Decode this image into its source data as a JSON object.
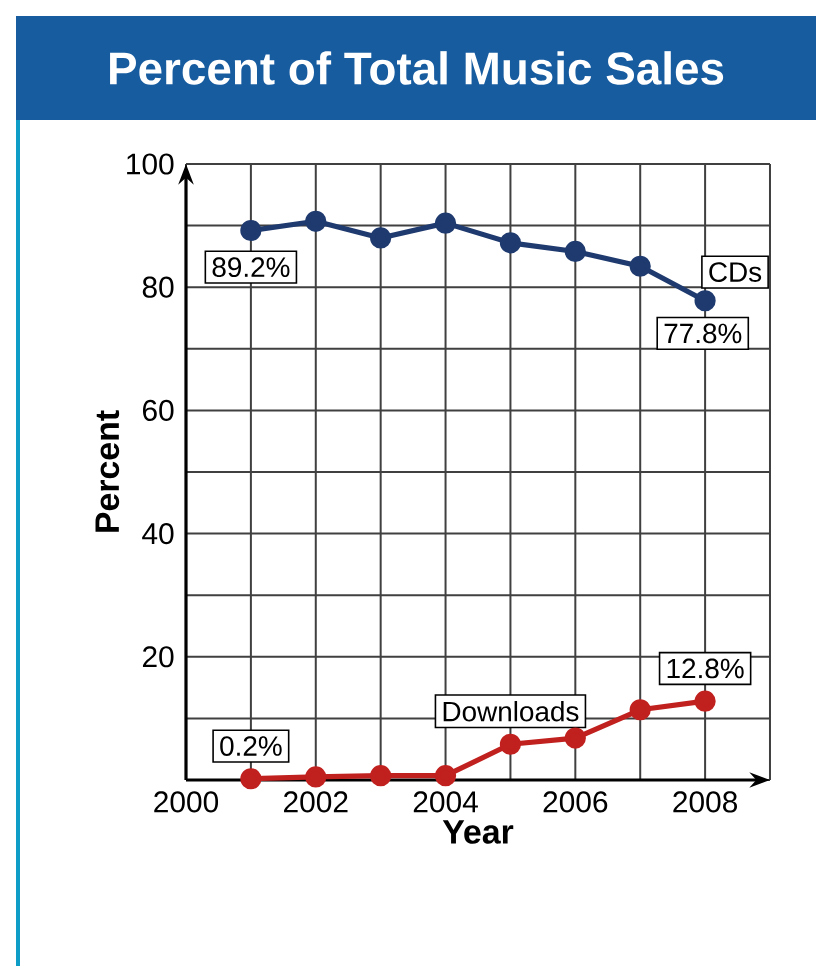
{
  "chart_data": {
    "type": "line",
    "title": "Percent of Total Music Sales",
    "xlabel": "Year",
    "ylabel": "Percent",
    "x": [
      2001,
      2002,
      2003,
      2004,
      2005,
      2006,
      2007,
      2008
    ],
    "xlim": [
      2000,
      2009
    ],
    "ylim": [
      0,
      100
    ],
    "xticks": [
      2000,
      {
        "value": 2001,
        "label": null
      },
      2002,
      {
        "value": 2003,
        "label": null
      },
      2004,
      {
        "value": 2005,
        "label": null
      },
      2006,
      {
        "value": 2007,
        "label": null
      },
      2008,
      {
        "value": 2009,
        "label": null
      }
    ],
    "yticks": [
      {
        "value": 0,
        "label": null
      },
      {
        "value": 10,
        "label": null
      },
      20,
      {
        "value": 30,
        "label": null
      },
      40,
      {
        "value": 50,
        "label": null
      },
      60,
      {
        "value": 70,
        "label": null
      },
      80,
      {
        "value": 90,
        "label": null
      },
      100
    ],
    "series": [
      {
        "name": "CDs",
        "color": "#1f3a6e",
        "values": [
          89.2,
          90.7,
          88.0,
          90.4,
          87.2,
          85.8,
          83.4,
          77.8
        ],
        "value_labels": [
          "89.2%",
          null,
          null,
          null,
          null,
          null,
          null,
          "77.8%"
        ]
      },
      {
        "name": "Downloads",
        "color": "#c0201e",
        "values": [
          0.2,
          0.5,
          0.7,
          0.7,
          5.8,
          6.8,
          11.4,
          12.8
        ],
        "value_labels": [
          "0.2%",
          null,
          null,
          null,
          null,
          null,
          null,
          "12.8%"
        ]
      }
    ],
    "grid": true,
    "marker": "circle",
    "line_style": "solid",
    "legend": false
  }
}
